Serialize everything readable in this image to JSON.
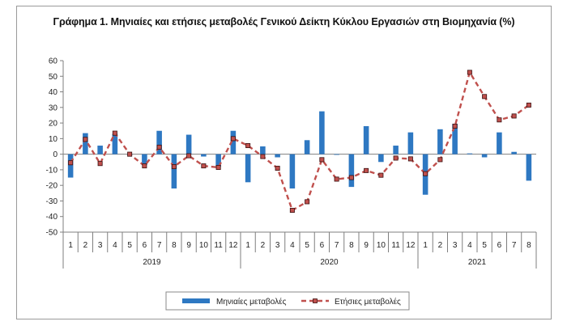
{
  "chart_data": {
    "type": "bar+line",
    "title": "Γράφημα 1. Μηνιαίες και ετήσιες μεταβολές  Γενικού Δείκτη Κύκλου Εργασιών στη Βιομηχανία (%)",
    "ylim": [
      -50,
      60
    ],
    "yticks": [
      -50,
      -40,
      -30,
      -20,
      -10,
      0,
      10,
      20,
      30,
      40,
      50,
      60
    ],
    "years": [
      {
        "label": "2019",
        "months": 12
      },
      {
        "label": "2020",
        "months": 12
      },
      {
        "label": "2021",
        "months": 8
      }
    ],
    "categories": [
      "1",
      "2",
      "3",
      "4",
      "5",
      "6",
      "7",
      "8",
      "9",
      "10",
      "11",
      "12",
      "1",
      "2",
      "3",
      "4",
      "5",
      "6",
      "7",
      "8",
      "9",
      "10",
      "11",
      "12",
      "1",
      "2",
      "3",
      "4",
      "5",
      "6",
      "7",
      "8"
    ],
    "series": [
      {
        "name": "Μηνιαίες μεταβολές",
        "kind": "bar",
        "color": "#2e78c2",
        "values": [
          -15,
          13.5,
          5.5,
          13,
          0,
          -7,
          15,
          -22,
          12.5,
          -1.5,
          -8,
          15,
          -18,
          5,
          -2,
          -22,
          9,
          27.5,
          0,
          -21,
          18,
          -5,
          5.5,
          14,
          -26,
          16,
          19.5,
          0.5,
          -2,
          14,
          1.5,
          -17
        ]
      },
      {
        "name": "Ετήσιες μεταβολές",
        "kind": "line",
        "color": "#c0504d",
        "values": [
          -5.5,
          9.5,
          -6,
          13.5,
          0,
          -7.5,
          4.5,
          -8,
          -1,
          -7.5,
          -8.5,
          10,
          5.5,
          -1.5,
          -9,
          -36,
          -30.5,
          -3.5,
          -16,
          -15,
          -10.5,
          -13.5,
          -2.5,
          -3,
          -12.5,
          -3.5,
          18,
          52.5,
          37,
          22,
          24.5,
          31.5
        ]
      }
    ]
  }
}
